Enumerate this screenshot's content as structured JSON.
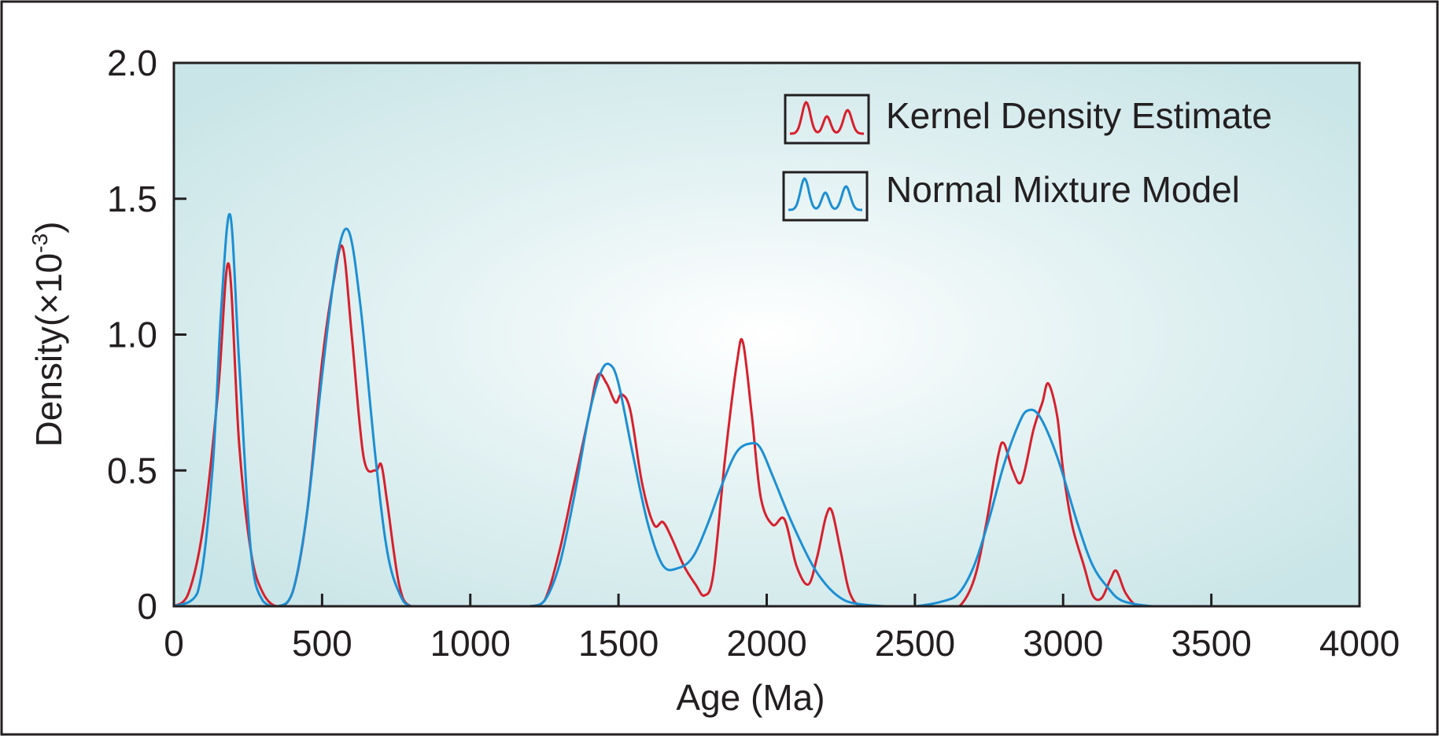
{
  "chart_data": {
    "type": "line",
    "xlabel": "Age (Ma)",
    "ylabel_main": "Density(×10",
    "ylabel_sup": "-3",
    "ylabel_close": ")",
    "xlim": [
      0,
      4000
    ],
    "ylim": [
      0,
      2.0
    ],
    "x_ticks": [
      0,
      500,
      1000,
      1500,
      2000,
      2500,
      3000,
      3500,
      4000
    ],
    "x_tick_labels": [
      "0",
      "500",
      "1000",
      "1500",
      "2000",
      "2500",
      "3000",
      "3500",
      "4000"
    ],
    "y_ticks": [
      0,
      0.5,
      1.0,
      1.5,
      2.0
    ],
    "y_tick_labels": [
      "0",
      "0.5",
      "1.0",
      "1.5",
      "2.0"
    ],
    "grid": false,
    "background": "light-teal radial gradient",
    "legend": {
      "placement": "top-right",
      "entries": [
        {
          "label": "Kernel Density Estimate",
          "color": "#d7202d"
        },
        {
          "label": "Normal Mixture Model",
          "color": "#1c8fd3"
        }
      ]
    },
    "series": [
      {
        "name": "Kernel Density Estimate",
        "color": "#d7202d",
        "x": [
          0,
          50,
          100,
          150,
          185,
          220,
          260,
          300,
          350,
          400,
          450,
          500,
          540,
          570,
          600,
          640,
          680,
          700,
          720,
          760,
          800,
          900,
          1000,
          1100,
          1200,
          1250,
          1300,
          1350,
          1400,
          1430,
          1460,
          1490,
          1510,
          1540,
          1580,
          1620,
          1650,
          1680,
          1720,
          1760,
          1790,
          1820,
          1860,
          1900,
          1920,
          1950,
          1980,
          2020,
          2060,
          2100,
          2140,
          2170,
          2200,
          2220,
          2250,
          2280,
          2320,
          2400,
          2500,
          2600,
          2650,
          2700,
          2740,
          2780,
          2800,
          2830,
          2860,
          2900,
          2930,
          2950,
          2980,
          3000,
          3030,
          3070,
          3100,
          3130,
          3160,
          3180,
          3210,
          3250,
          3300,
          3500,
          3700,
          3900,
          4000
        ],
        "y": [
          0.0,
          0.05,
          0.3,
          0.8,
          1.26,
          0.6,
          0.2,
          0.05,
          0.0,
          0.05,
          0.35,
          0.9,
          1.2,
          1.32,
          1.0,
          0.55,
          0.5,
          0.52,
          0.38,
          0.08,
          0.0,
          0.0,
          0.0,
          0.0,
          0.0,
          0.02,
          0.2,
          0.45,
          0.7,
          0.85,
          0.82,
          0.75,
          0.78,
          0.72,
          0.45,
          0.3,
          0.31,
          0.25,
          0.15,
          0.08,
          0.04,
          0.12,
          0.55,
          0.9,
          0.97,
          0.7,
          0.4,
          0.3,
          0.32,
          0.15,
          0.08,
          0.18,
          0.33,
          0.35,
          0.2,
          0.05,
          0.0,
          0.0,
          0.0,
          0.0,
          0.0,
          0.1,
          0.3,
          0.55,
          0.6,
          0.5,
          0.46,
          0.65,
          0.75,
          0.82,
          0.7,
          0.5,
          0.3,
          0.15,
          0.04,
          0.03,
          0.1,
          0.13,
          0.05,
          0.0,
          0.0,
          0.0,
          0.0,
          0.0,
          0.0
        ]
      },
      {
        "name": "Normal Mixture Model",
        "color": "#1c8fd3",
        "x": [
          0,
          80,
          130,
          160,
          190,
          220,
          260,
          300,
          350,
          400,
          450,
          500,
          550,
          590,
          630,
          680,
          720,
          760,
          800,
          900,
          1000,
          1100,
          1200,
          1250,
          1300,
          1350,
          1400,
          1440,
          1470,
          1500,
          1550,
          1600,
          1650,
          1700,
          1750,
          1800,
          1850,
          1900,
          1950,
          1980,
          2020,
          2080,
          2150,
          2200,
          2250,
          2300,
          2400,
          2500,
          2600,
          2650,
          2700,
          2750,
          2800,
          2850,
          2880,
          2920,
          2980,
          3050,
          3100,
          3150,
          3200,
          3300,
          3400,
          3500,
          3650
        ],
        "y": [
          0.0,
          0.05,
          0.5,
          1.1,
          1.44,
          0.9,
          0.2,
          0.02,
          0.0,
          0.05,
          0.35,
          0.85,
          1.28,
          1.38,
          1.1,
          0.55,
          0.2,
          0.05,
          0.0,
          0.0,
          0.0,
          0.0,
          0.0,
          0.02,
          0.15,
          0.4,
          0.7,
          0.86,
          0.89,
          0.82,
          0.55,
          0.3,
          0.15,
          0.14,
          0.18,
          0.3,
          0.45,
          0.57,
          0.6,
          0.58,
          0.48,
          0.32,
          0.16,
          0.08,
          0.03,
          0.01,
          0.0,
          0.0,
          0.02,
          0.05,
          0.15,
          0.32,
          0.52,
          0.67,
          0.72,
          0.7,
          0.55,
          0.3,
          0.15,
          0.07,
          0.02,
          0.0,
          0.0,
          0.0,
          0.0
        ]
      }
    ]
  }
}
